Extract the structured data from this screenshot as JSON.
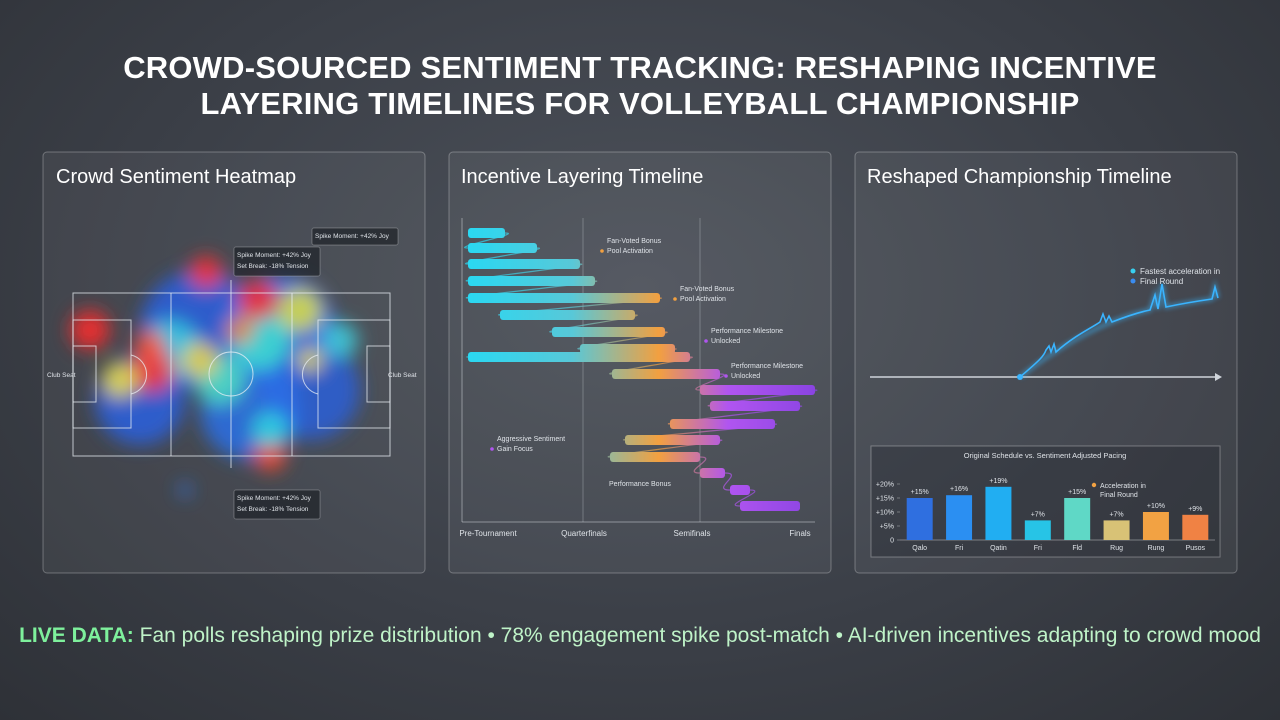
{
  "header": {
    "title": "CROWD-SOURCED SENTIMENT TRACKING: RESHAPING INCENTIVE LAYERING TIMELINES FOR VOLLEYBALL CHAMPIONSHIP"
  },
  "heatmap": {
    "title": "Crowd Sentiment Heatmap",
    "callouts": [
      [
        "Spike Moment: +42% Joy"
      ],
      [
        "Spike Moment: +42% Joy",
        "Set Break: -18% Tension"
      ],
      [
        "Spike Moment: +42% Joy",
        "Set Break: -18% Tension"
      ]
    ],
    "side_labels": [
      "Club Seat",
      "Club Seat"
    ]
  },
  "timeline": {
    "title": "Incentive Layering Timeline",
    "stages": [
      "Pre-Tournament",
      "Quarterfinals",
      "Semifinals",
      "Finals"
    ],
    "annotations": [
      [
        "Fan-Voted Bonus",
        "Pool Activation"
      ],
      [
        "Fan-Voted Bonus",
        "Pool Activation"
      ],
      [
        "Performance Milestone",
        "Unlocked"
      ],
      [
        "Performance Milestone",
        "Unlocked"
      ],
      [
        "Aggressive Sentiment",
        "Gain Focus"
      ],
      [
        "Performance Bonus"
      ]
    ]
  },
  "reshaped": {
    "title": "Reshaped Championship Timeline",
    "legend": [
      "Fastest acceleration in",
      "Final Round"
    ]
  },
  "chart_data": {
    "type": "bar",
    "title": "Original Schedule vs. Sentiment Adjusted Pacing",
    "categories": [
      "Qalo",
      "Fri",
      "Qatin",
      "Fri",
      "Fld",
      "Rug",
      "Rung",
      "Pusos"
    ],
    "values": [
      15,
      16,
      19,
      7,
      15,
      7,
      10,
      9
    ],
    "value_labels": [
      "+15%",
      "+16%",
      "+19%",
      "+7%",
      "+15%",
      "+7%",
      "+10%",
      "+9%"
    ],
    "colors": [
      "#2f6fe0",
      "#2b8ff2",
      "#21aef2",
      "#27c4e6",
      "#5fd8c6",
      "#d8c276",
      "#f2a243",
      "#f08244"
    ],
    "ylim": [
      0,
      25
    ],
    "yticks": [
      0,
      {
        "value": 5,
        "label": "+5%"
      },
      {
        "value": 10,
        "label": "+10%"
      },
      {
        "value": 15,
        "label": "+15%"
      },
      {
        "value": 20,
        "label": "+20%"
      }
    ],
    "legend": [
      "Acceleration in",
      "Final Round"
    ],
    "legend_color": "#f2a243"
  },
  "footer": {
    "lead": "LIVE DATA:",
    "text": " Fan polls reshaping prize distribution • 78% engagement spike post-match • AI-driven incentives adapting to crowd mood"
  }
}
